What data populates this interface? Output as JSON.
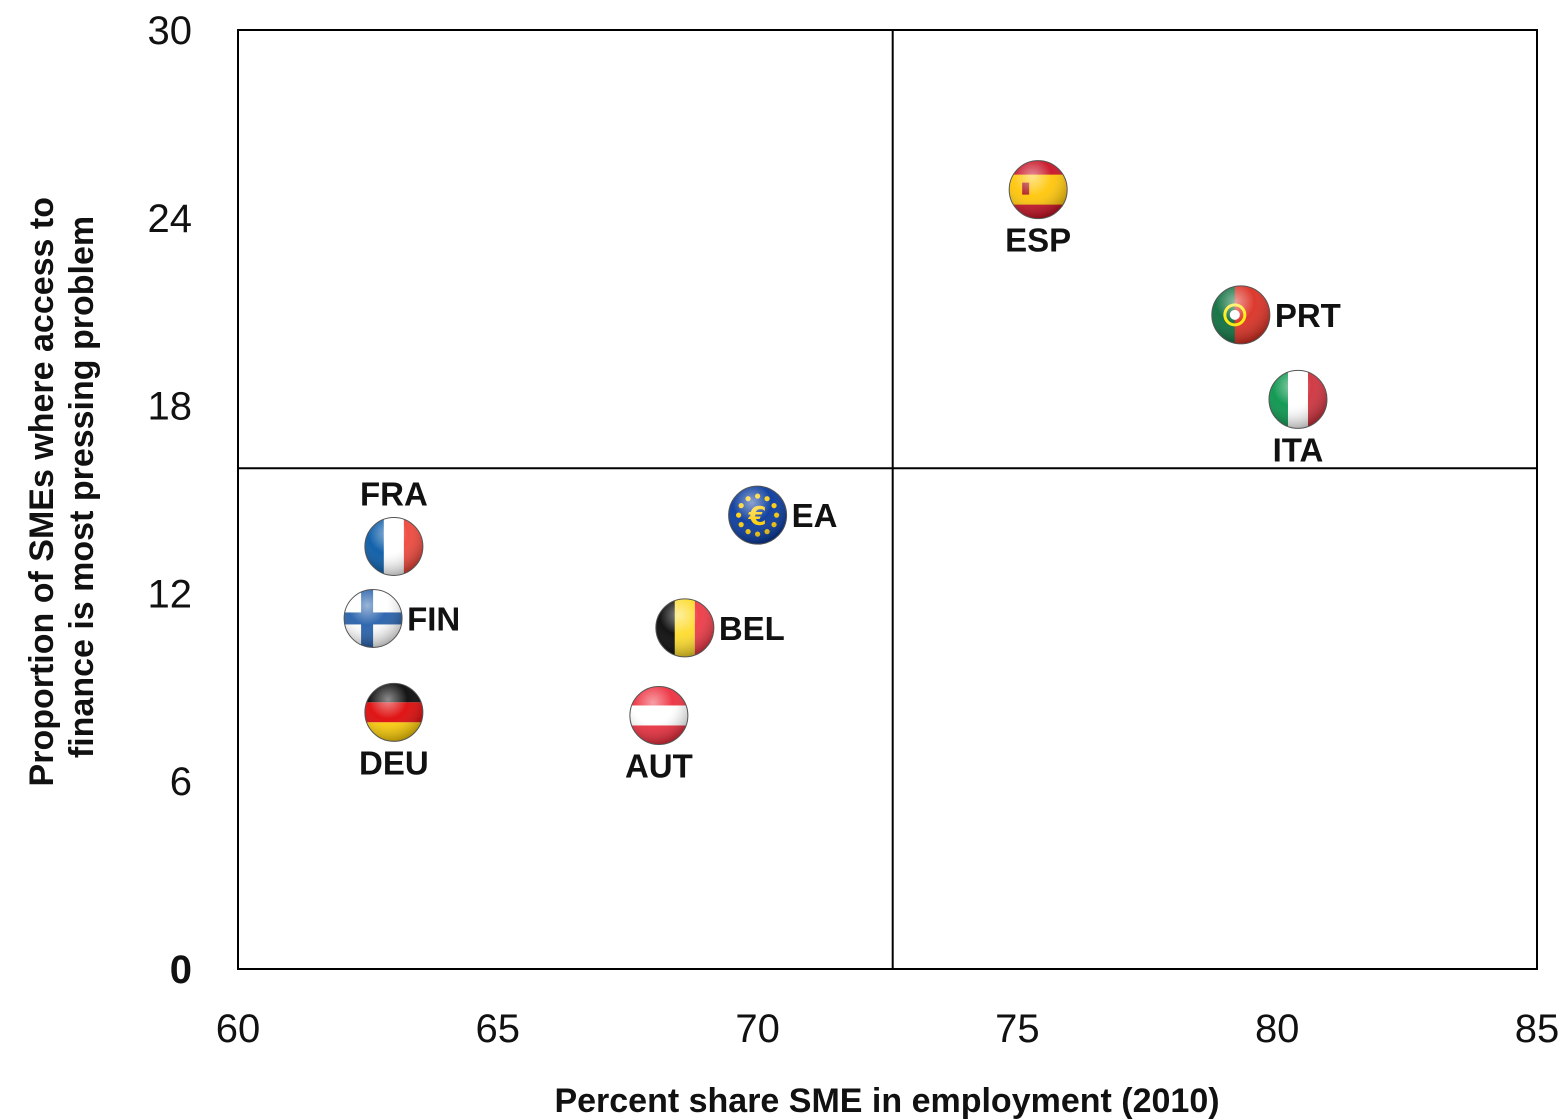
{
  "chart_data": {
    "type": "scatter",
    "title": "",
    "xlabel": "Percent share SME in employment (2010)",
    "ylabel_lines": [
      "Proportion of SMEs where access to",
      "finance is most pressing problem"
    ],
    "xlim": [
      60,
      85
    ],
    "ylim": [
      0,
      30
    ],
    "x_ticks": [
      "60",
      "65",
      "70",
      "75",
      "80",
      "85"
    ],
    "y_ticks": [
      "0",
      "6",
      "12",
      "18",
      "24",
      "30"
    ],
    "y_zero_tick_color": "#e8401c",
    "grid": false,
    "quadrant_dividers": {
      "x": 72.6,
      "y": 16.0
    },
    "points": [
      {
        "label": "ESP",
        "x": 75.4,
        "y": 24.9,
        "flag": "spain-flag",
        "label_pos": "below"
      },
      {
        "label": "PRT",
        "x": 79.3,
        "y": 20.9,
        "flag": "portugal-flag",
        "label_pos": "right"
      },
      {
        "label": "ITA",
        "x": 80.4,
        "y": 18.2,
        "flag": "italy-flag",
        "label_pos": "below"
      },
      {
        "label": "FRA",
        "x": 63.0,
        "y": 13.5,
        "flag": "france-flag",
        "label_pos": "above"
      },
      {
        "label": "EA",
        "x": 70.0,
        "y": 14.5,
        "flag": "euro-area-flag",
        "label_pos": "right"
      },
      {
        "label": "FIN",
        "x": 62.6,
        "y": 11.2,
        "flag": "finland-flag",
        "label_pos": "right"
      },
      {
        "label": "BEL",
        "x": 68.6,
        "y": 10.9,
        "flag": "belgium-flag",
        "label_pos": "right"
      },
      {
        "label": "DEU",
        "x": 63.0,
        "y": 8.2,
        "flag": "germany-flag",
        "label_pos": "below"
      },
      {
        "label": "AUT",
        "x": 68.1,
        "y": 8.1,
        "flag": "austria-flag",
        "label_pos": "below"
      }
    ]
  }
}
